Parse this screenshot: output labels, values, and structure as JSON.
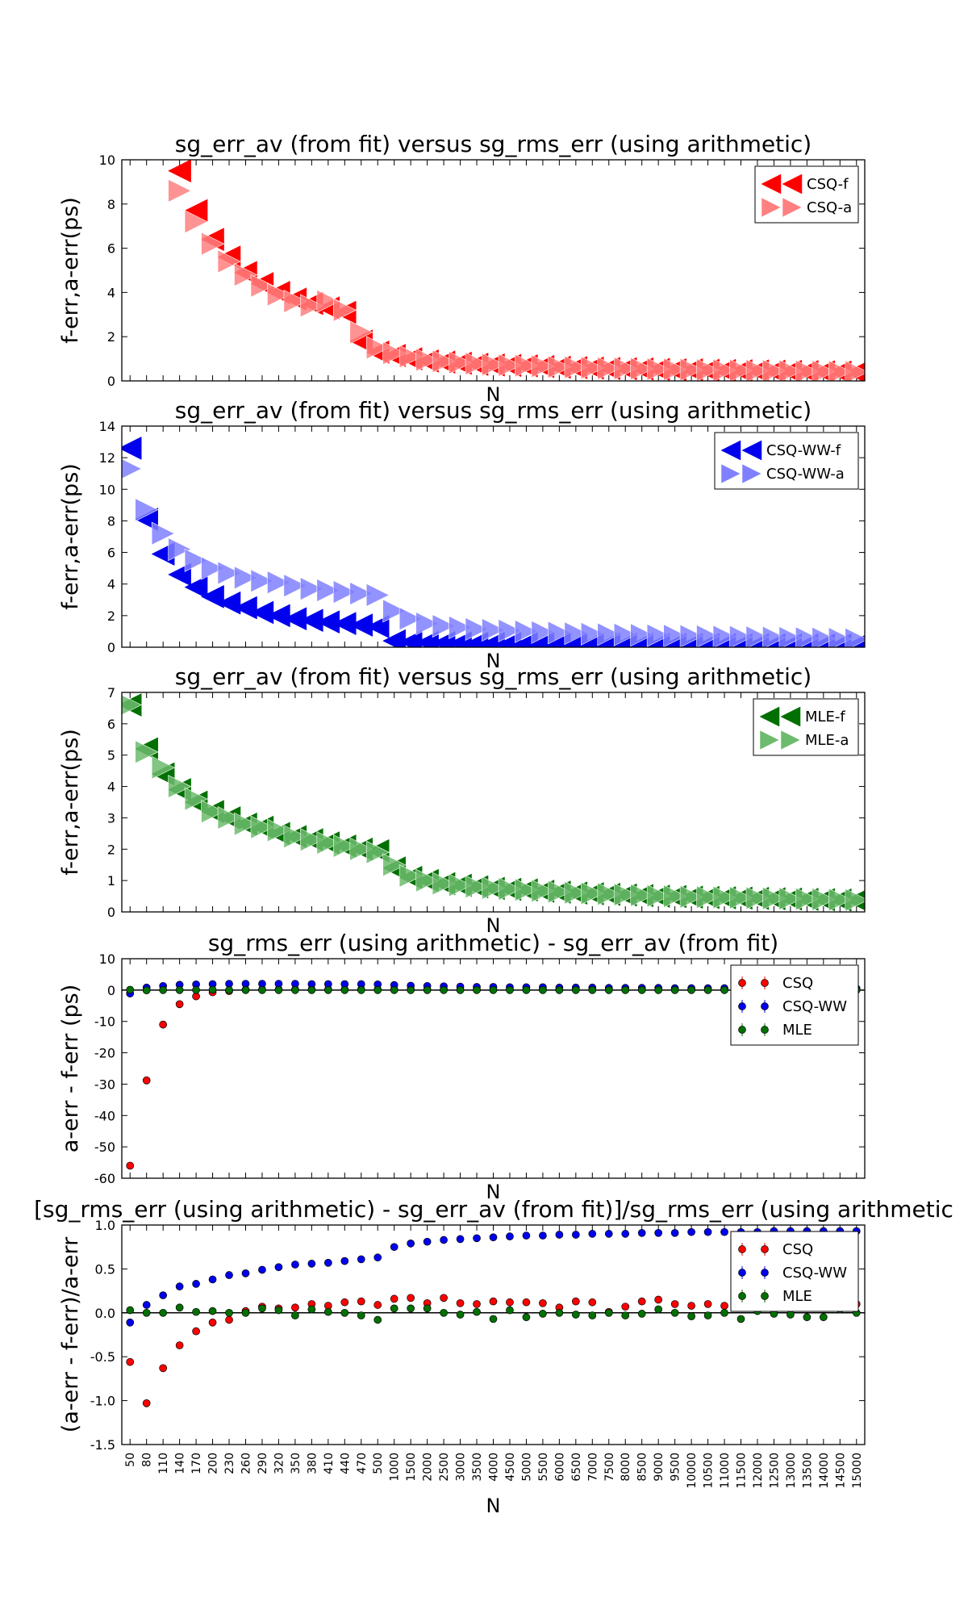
{
  "figure": {
    "xlabel": "N",
    "x_categories": [
      "50",
      "80",
      "110",
      "140",
      "170",
      "200",
      "230",
      "260",
      "290",
      "320",
      "350",
      "380",
      "410",
      "440",
      "470",
      "500",
      "1000",
      "1500",
      "2000",
      "2500",
      "3000",
      "3500",
      "4000",
      "4500",
      "5000",
      "5500",
      "6000",
      "6500",
      "7000",
      "7500",
      "8000",
      "8500",
      "9000",
      "9500",
      "10000",
      "10500",
      "11000",
      "11500",
      "12000",
      "12500",
      "13000",
      "13500",
      "14000",
      "14500",
      "15000"
    ]
  },
  "chart_data": [
    {
      "type": "scatter",
      "title": "sg_err_av (from fit) versus sg_rms_err (using arithmetic)",
      "xlabel": "N",
      "ylabel": "f-err,a-err(ps)",
      "ylim": [
        0,
        10
      ],
      "yticks": [
        0,
        2,
        4,
        6,
        8,
        10
      ],
      "grid": false,
      "legend": "top-right",
      "series": [
        {
          "name": "CSQ-f",
          "marker": "left-triangle",
          "color": "#ff0000",
          "values": [
            null,
            null,
            null,
            9.5,
            7.7,
            6.4,
            5.6,
            4.9,
            4.4,
            4.0,
            3.7,
            3.5,
            3.3,
            3.1,
            1.8,
            1.3,
            1.15,
            1.0,
            0.9,
            0.85,
            0.8,
            0.75,
            0.72,
            0.7,
            0.68,
            0.65,
            0.62,
            0.6,
            0.58,
            0.56,
            0.55,
            0.54,
            0.52,
            0.5,
            0.5,
            0.48,
            0.47,
            0.46,
            0.45,
            0.44,
            0.43,
            0.42,
            0.41,
            0.4,
            0.38
          ]
        },
        {
          "name": "CSQ-a",
          "marker": "right-triangle",
          "color": "#ff8080",
          "values": [
            null,
            null,
            null,
            8.6,
            7.2,
            6.2,
            5.4,
            4.8,
            4.3,
            3.9,
            3.6,
            3.4,
            3.6,
            3.2,
            2.2,
            1.5,
            1.25,
            1.1,
            0.95,
            0.88,
            0.82,
            0.78,
            0.74,
            0.71,
            0.69,
            0.66,
            0.63,
            0.61,
            0.59,
            0.57,
            0.56,
            0.55,
            0.53,
            0.52,
            0.51,
            0.49,
            0.48,
            0.47,
            0.46,
            0.45,
            0.44,
            0.43,
            0.42,
            0.41,
            0.4
          ]
        }
      ]
    },
    {
      "type": "scatter",
      "title": "sg_err_av (from fit) versus sg_rms_err (using arithmetic)",
      "xlabel": "N",
      "ylabel": "f-err,a-err(ps)",
      "ylim": [
        0,
        14
      ],
      "yticks": [
        0,
        2,
        4,
        6,
        8,
        10,
        12,
        14
      ],
      "grid": false,
      "legend": "top-right",
      "series": [
        {
          "name": "CSQ-WW-f",
          "marker": "left-triangle",
          "color": "#0000ee",
          "values": [
            12.6,
            8.1,
            5.9,
            4.6,
            3.8,
            3.2,
            2.8,
            2.5,
            2.2,
            2.0,
            1.8,
            1.7,
            1.6,
            1.5,
            1.4,
            1.3,
            0.4,
            0.33,
            0.3,
            0.28,
            0.26,
            0.25,
            0.24,
            0.23,
            0.22,
            0.21,
            0.2,
            0.2,
            0.19,
            0.19,
            0.18,
            0.18,
            0.17,
            0.17,
            0.16,
            0.16,
            0.16,
            0.15,
            0.15,
            0.15,
            0.14,
            0.14,
            0.14,
            0.14,
            0.13
          ]
        },
        {
          "name": "CSQ-WW-a",
          "marker": "right-triangle",
          "color": "#8080ff",
          "values": [
            11.3,
            8.7,
            7.2,
            6.2,
            5.5,
            5.0,
            4.7,
            4.4,
            4.2,
            4.1,
            3.9,
            3.7,
            3.6,
            3.5,
            3.4,
            3.3,
            2.3,
            1.8,
            1.5,
            1.35,
            1.25,
            1.15,
            1.1,
            1.05,
            1.0,
            0.95,
            0.92,
            0.88,
            0.85,
            0.82,
            0.8,
            0.78,
            0.75,
            0.73,
            0.71,
            0.69,
            0.67,
            0.65,
            0.63,
            0.61,
            0.59,
            0.57,
            0.55,
            0.53,
            0.5
          ]
        }
      ]
    },
    {
      "type": "scatter",
      "title": "sg_err_av (from fit) versus sg_rms_err (using arithmetic)",
      "xlabel": "N",
      "ylabel": "f-err,a-err(ps)",
      "ylim": [
        0,
        7
      ],
      "yticks": [
        0,
        1,
        2,
        3,
        4,
        5,
        6,
        7
      ],
      "grid": false,
      "legend": "top-right",
      "series": [
        {
          "name": "MLE-f",
          "marker": "left-triangle",
          "color": "#007000",
          "values": [
            6.6,
            5.2,
            4.4,
            3.9,
            3.5,
            3.2,
            3.0,
            2.8,
            2.7,
            2.5,
            2.4,
            2.3,
            2.2,
            2.1,
            2.0,
            1.95,
            1.4,
            1.1,
            1.0,
            0.9,
            0.85,
            0.8,
            0.75,
            0.72,
            0.7,
            0.66,
            0.63,
            0.6,
            0.58,
            0.56,
            0.54,
            0.52,
            0.5,
            0.49,
            0.47,
            0.46,
            0.45,
            0.44,
            0.43,
            0.42,
            0.41,
            0.4,
            0.39,
            0.38,
            0.37
          ]
        },
        {
          "name": "MLE-a",
          "marker": "right-triangle",
          "color": "#6dbb6d",
          "values": [
            6.6,
            5.1,
            4.6,
            4.0,
            3.6,
            3.2,
            3.0,
            2.8,
            2.7,
            2.6,
            2.4,
            2.3,
            2.2,
            2.1,
            2.0,
            1.9,
            1.5,
            1.15,
            1.0,
            0.9,
            0.85,
            0.8,
            0.76,
            0.73,
            0.7,
            0.67,
            0.64,
            0.61,
            0.59,
            0.57,
            0.55,
            0.53,
            0.51,
            0.5,
            0.48,
            0.47,
            0.46,
            0.45,
            0.44,
            0.43,
            0.42,
            0.41,
            0.4,
            0.39,
            0.38
          ]
        }
      ]
    },
    {
      "type": "scatter",
      "title": "sg_rms_err (using arithmetic) - sg_err_av (from fit)",
      "xlabel": "N",
      "ylabel": "a-err - f-err (ps)",
      "ylim": [
        -60,
        10
      ],
      "yticks": [
        -60,
        -50,
        -40,
        -30,
        -20,
        -10,
        0,
        10
      ],
      "grid": false,
      "legend": "top-right",
      "hline": 0,
      "series": [
        {
          "name": "CSQ",
          "marker": "circle-errorbar",
          "color": "#ff0000",
          "values": [
            -56,
            -28.8,
            -11,
            -4.5,
            -2,
            -0.7,
            -0.3,
            0.1,
            0.2,
            0.2,
            0.2,
            0.2,
            0.2,
            0.2,
            0.2,
            0.2,
            0.2,
            0.2,
            0.2,
            0.2,
            0.1,
            0.1,
            0.1,
            0.1,
            0.1,
            0.1,
            0.1,
            0.1,
            0.1,
            0.1,
            0.1,
            0.1,
            0.1,
            0.1,
            0.1,
            0.1,
            0.1,
            0.1,
            0.1,
            0.1,
            0.1,
            0.1,
            0.1,
            0.1,
            0.1
          ]
        },
        {
          "name": "CSQ-WW",
          "marker": "circle-errorbar",
          "color": "#0000ee",
          "values": [
            -1.1,
            0.8,
            1.3,
            1.7,
            1.8,
            1.9,
            2.0,
            2.0,
            2.0,
            2.0,
            2.0,
            1.9,
            1.9,
            1.9,
            1.9,
            1.8,
            1.6,
            1.4,
            1.3,
            1.2,
            1.1,
            1.0,
            1.0,
            0.9,
            0.9,
            0.9,
            0.8,
            0.8,
            0.8,
            0.7,
            0.7,
            0.7,
            0.7,
            0.6,
            0.6,
            0.6,
            0.6,
            0.6,
            0.6,
            0.5,
            0.5,
            0.5,
            0.5,
            0.5,
            0.5
          ]
        },
        {
          "name": "MLE",
          "marker": "circle-errorbar",
          "color": "#007000",
          "values": [
            0.1,
            -0.1,
            0,
            0,
            0,
            0.1,
            0,
            0,
            0,
            0,
            0,
            0,
            0,
            0,
            0,
            0,
            0,
            0,
            0,
            0,
            0,
            0,
            0,
            0,
            0,
            0,
            0,
            0,
            0,
            0,
            0,
            0,
            0,
            0,
            0,
            0,
            0,
            0,
            0,
            0,
            0,
            0,
            0,
            0,
            0
          ]
        }
      ]
    },
    {
      "type": "scatter",
      "title": "[sg_rms_err (using arithmetic) - sg_err_av (from fit)]/sg_rms_err (using arithmetic",
      "xlabel": "N",
      "ylabel": "(a-err - f-err)/a-err",
      "ylim": [
        -1.5,
        1.0
      ],
      "yticks": [
        -1.5,
        -1.0,
        -0.5,
        0.0,
        0.5,
        1.0
      ],
      "grid": false,
      "legend": "top-right",
      "hline": 0,
      "series": [
        {
          "name": "CSQ",
          "marker": "circle-errorbar",
          "color": "#ff0000",
          "values": [
            -0.56,
            -1.03,
            -0.63,
            -0.37,
            -0.21,
            -0.11,
            -0.08,
            0.02,
            0.07,
            0.05,
            0.06,
            0.1,
            0.08,
            0.12,
            0.13,
            0.09,
            0.16,
            0.17,
            0.11,
            0.17,
            0.11,
            0.1,
            0.13,
            0.12,
            0.12,
            0.11,
            0.06,
            0.13,
            0.12,
            0.01,
            0.07,
            0.13,
            0.15,
            0.1,
            0.08,
            0.1,
            0.08,
            0.09,
            0.04,
            0.09,
            0.08,
            0.1,
            0.07,
            0.06,
            0.1
          ]
        },
        {
          "name": "CSQ-WW",
          "marker": "circle-errorbar",
          "color": "#0000ee",
          "values": [
            -0.11,
            0.09,
            0.2,
            0.3,
            0.33,
            0.38,
            0.43,
            0.45,
            0.49,
            0.52,
            0.55,
            0.56,
            0.57,
            0.59,
            0.61,
            0.63,
            0.75,
            0.79,
            0.81,
            0.83,
            0.84,
            0.85,
            0.86,
            0.87,
            0.88,
            0.88,
            0.89,
            0.89,
            0.9,
            0.9,
            0.9,
            0.91,
            0.91,
            0.91,
            0.92,
            0.92,
            0.92,
            0.92,
            0.92,
            0.93,
            0.93,
            0.93,
            0.93,
            0.93,
            0.93
          ]
        },
        {
          "name": "MLE",
          "marker": "circle-errorbar",
          "color": "#007000",
          "values": [
            0.03,
            0.0,
            0.0,
            0.06,
            0.01,
            0.02,
            0.0,
            0.0,
            0.05,
            0.03,
            -0.03,
            0.04,
            0.01,
            0.0,
            -0.03,
            -0.08,
            0.05,
            0.05,
            0.05,
            0.0,
            -0.02,
            0.01,
            -0.07,
            0.03,
            -0.05,
            -0.01,
            0.0,
            -0.02,
            -0.03,
            0.0,
            -0.03,
            -0.01,
            0.04,
            0.0,
            -0.04,
            -0.03,
            0.0,
            -0.07,
            0.02,
            -0.01,
            -0.02,
            -0.05,
            -0.05,
            0.04,
            0.0
          ]
        }
      ]
    }
  ]
}
